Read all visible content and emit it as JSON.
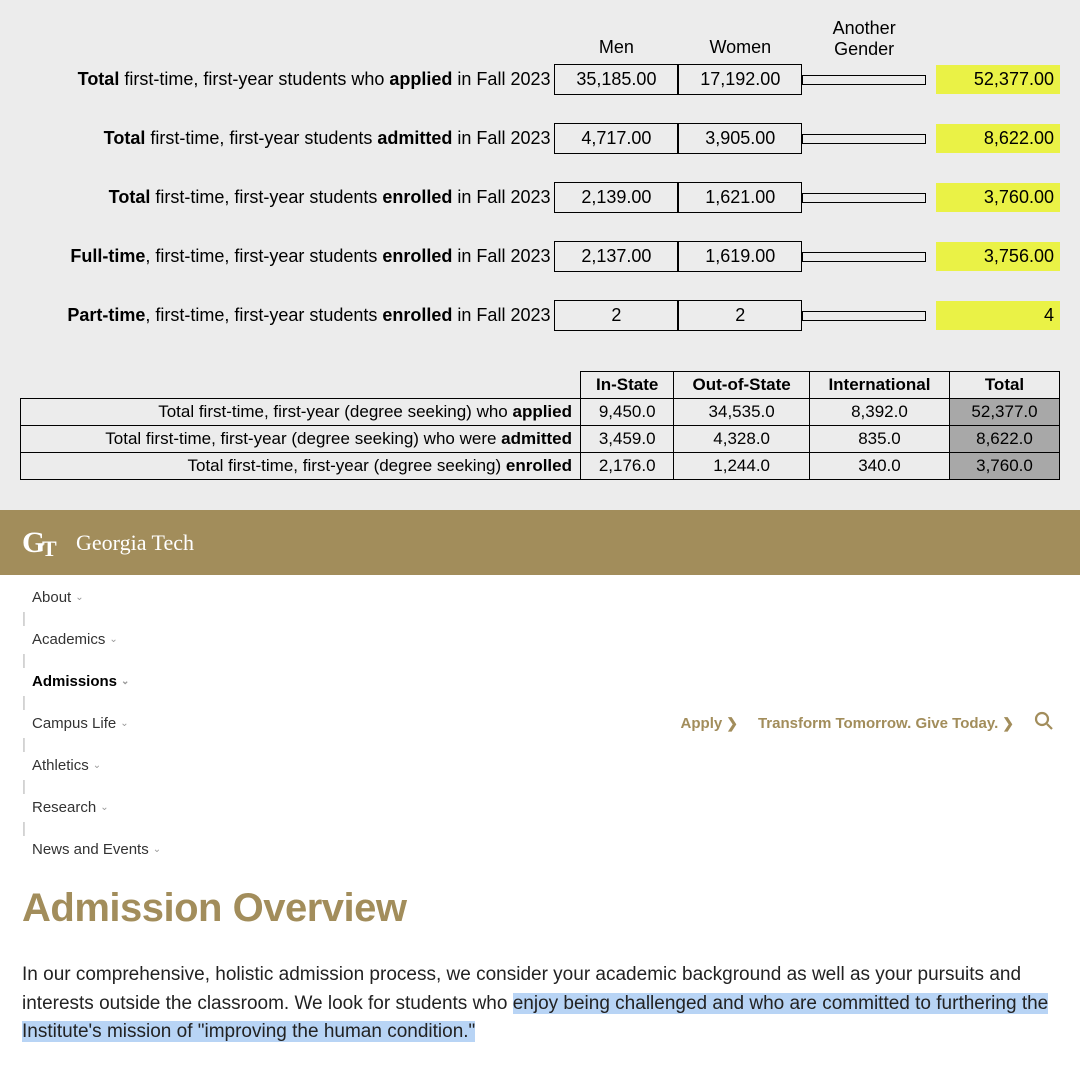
{
  "table1": {
    "headers": [
      "Men",
      "Women",
      "Another Gender"
    ],
    "rows": [
      {
        "label_pre": "Total",
        "label_mid": " first-time, first-year students who ",
        "label_em": "applied",
        "label_post": " in Fall 2023",
        "men": "35,185.00",
        "women": "17,192.00",
        "other": "",
        "total": "52,377.00"
      },
      {
        "label_pre": "Total",
        "label_mid": " first-time, first-year students ",
        "label_em": "admitted",
        "label_post": " in Fall 2023",
        "men": "4,717.00",
        "women": "3,905.00",
        "other": "",
        "total": "8,622.00"
      },
      {
        "label_pre": "Total",
        "label_mid": " first-time, first-year students ",
        "label_em": "enrolled",
        "label_post": " in Fall 2023",
        "men": "2,139.00",
        "women": "1,621.00",
        "other": "",
        "total": "3,760.00"
      },
      {
        "label_pre": "Full-time",
        "label_mid": ", first-time, first-year students ",
        "label_em": "enrolled",
        "label_post": " in Fall 2023",
        "men": "2,137.00",
        "women": "1,619.00",
        "other": "",
        "total": "3,756.00"
      },
      {
        "label_pre": "Part-time",
        "label_mid": ", first-time, first-year students ",
        "label_em": "enrolled",
        "label_post": " in Fall 2023",
        "men": "2",
        "women": "2",
        "other": "",
        "total": "4"
      }
    ]
  },
  "table2": {
    "headers": [
      "In-State",
      "Out-of-State",
      "International",
      "Total"
    ],
    "rows": [
      {
        "label_pre": "Total first-time, first-year (degree seeking) who ",
        "label_em": "applied",
        "instate": "9,450.0",
        "outstate": "34,535.0",
        "intl": "8,392.0",
        "total": "52,377.0"
      },
      {
        "label_pre": "Total first-time, first-year (degree seeking) who were ",
        "label_em": "admitted",
        "instate": "3,459.0",
        "outstate": "4,328.0",
        "intl": "835.0",
        "total": "8,622.0"
      },
      {
        "label_pre": "Total first-time, first-year (degree seeking) ",
        "label_em": "enrolled",
        "instate": "2,176.0",
        "outstate": "1,244.0",
        "intl": "340.0",
        "total": "3,760.0"
      }
    ]
  },
  "gt": {
    "mark": "GT",
    "name": "Georgia Tech",
    "nav": [
      "About",
      "Academics",
      "Admissions",
      "Campus Life",
      "Athletics",
      "Research",
      "News and Events"
    ],
    "active_nav": "Admissions",
    "cta_apply": "Apply",
    "cta_give": "Transform Tomorrow. Give Today.",
    "page_title": "Admission Overview",
    "body_pre": "In our comprehensive, holistic admission process, we consider your academic background as well as your pursuits and interests outside the classroom. We look for students who ",
    "body_hl": "enjoy being challenged and who are committed to furthering the Institute's mission of \"improving the human condition.\""
  },
  "colors": {
    "page_bg": "#ececec",
    "highlight_yellow": "#eaf246",
    "total_gray": "#a8a8a8",
    "gt_gold": "#a28d5b",
    "selection_blue": "#b8d4f5"
  }
}
